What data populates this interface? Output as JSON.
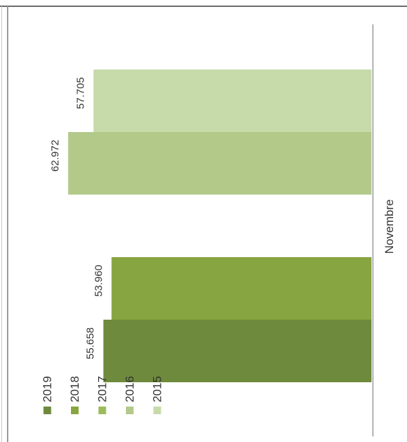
{
  "chart_data": {
    "type": "bar",
    "orientation": "horizontal",
    "text_rotation": "rotated 90deg counter-clockwise",
    "categories": [
      "Novembre"
    ],
    "series": [
      {
        "name": "2019",
        "values": [
          55658
        ],
        "label": "55.658",
        "color": "#6e8a3c"
      },
      {
        "name": "2018",
        "values": [
          53960
        ],
        "label": "53.960",
        "color": "#87a540"
      },
      {
        "name": "2017",
        "values": [
          null
        ],
        "label": "",
        "color": "#9dbb5c"
      },
      {
        "name": "2016",
        "values": [
          62972
        ],
        "label": "62.972",
        "color": "#b3c98a"
      },
      {
        "name": "2015",
        "values": [
          57705
        ],
        "label": "57.705",
        "color": "#c7dbaa"
      }
    ],
    "legend": [
      "2019",
      "2018",
      "2017",
      "2016",
      "2015"
    ],
    "legend_position": "left",
    "xlim": [
      0,
      70000
    ],
    "grid": false,
    "title": "",
    "xlabel": "",
    "ylabel": ""
  }
}
